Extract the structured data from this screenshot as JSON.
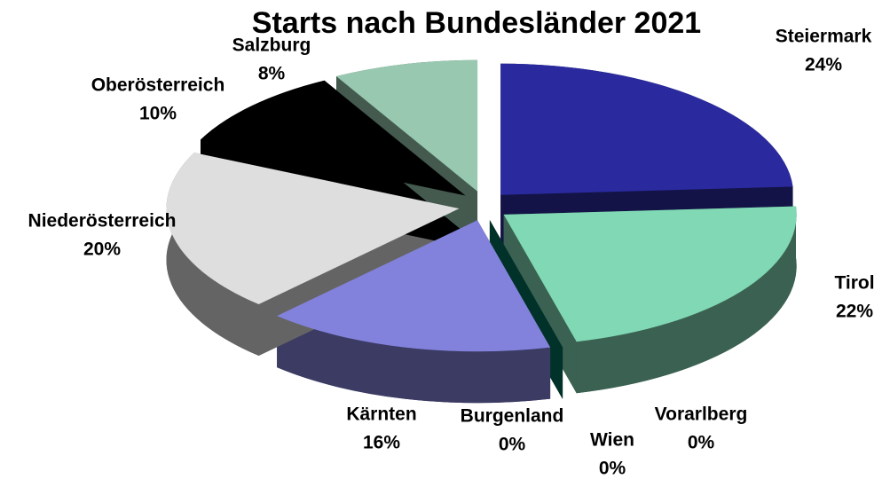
{
  "chart_data": {
    "type": "pie3d",
    "title": "Starts nach Bundesländer 2021",
    "categories": [
      "Steiermark",
      "Tirol",
      "Vorarlberg",
      "Wien",
      "Burgenland",
      "Kärnten",
      "Niederösterreich",
      "Oberösterreich",
      "Salzburg"
    ],
    "values": [
      24,
      22,
      0,
      0,
      0,
      16,
      20,
      10,
      8
    ],
    "value_labels": [
      "24%",
      "22%",
      "0%",
      "0%",
      "0%",
      "16%",
      "20%",
      "10%",
      "8%"
    ],
    "colors": [
      "#2a2a9e",
      "#80d8b4",
      "#6a6a6a",
      "#8a8a8a",
      "#00705a",
      "#8282dc",
      "#dedede",
      "#000000",
      "#98c8b0"
    ]
  }
}
